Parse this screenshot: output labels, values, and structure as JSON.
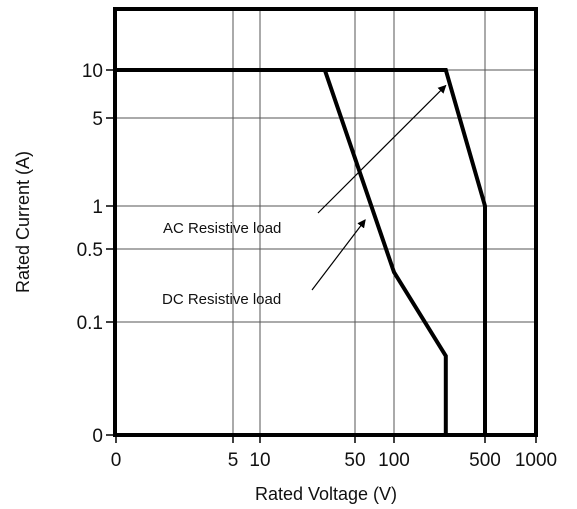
{
  "chart_data": {
    "type": "line",
    "title": "",
    "xlabel": "Rated Voltage (V)",
    "ylabel": "Rated Current (A)",
    "xscale": "log",
    "yscale": "log",
    "grid": true,
    "x_ticks": [
      {
        "value": 0,
        "label": "0"
      },
      {
        "value": 5,
        "label": "5"
      },
      {
        "value": 10,
        "label": "10"
      },
      {
        "value": 50,
        "label": "50"
      },
      {
        "value": 100,
        "label": "100"
      },
      {
        "value": 500,
        "label": "500"
      },
      {
        "value": 1000,
        "label": "1000"
      }
    ],
    "y_ticks": [
      {
        "value": 0,
        "label": "0"
      },
      {
        "value": 0.1,
        "label": "0.1"
      },
      {
        "value": 0.5,
        "label": "0.5"
      },
      {
        "value": 1,
        "label": "1"
      },
      {
        "value": 5,
        "label": "5"
      },
      {
        "value": 10,
        "label": "10"
      }
    ],
    "series": [
      {
        "name": "DC Resistive load",
        "points": [
          [
            0,
            10
          ],
          [
            30,
            10
          ],
          [
            100,
            0.3
          ],
          [
            250,
            0.07
          ],
          [
            250,
            0
          ]
        ]
      },
      {
        "name": "AC Resistive load",
        "points": [
          [
            0,
            10
          ],
          [
            250,
            10
          ],
          [
            500,
            1
          ],
          [
            500,
            0
          ]
        ]
      }
    ],
    "annotations": [
      {
        "text": "AC Resistive load",
        "arrow_to": [
          250,
          8
        ]
      },
      {
        "text": "DC Resistive load",
        "arrow_to": [
          60,
          0.8
        ]
      }
    ]
  }
}
